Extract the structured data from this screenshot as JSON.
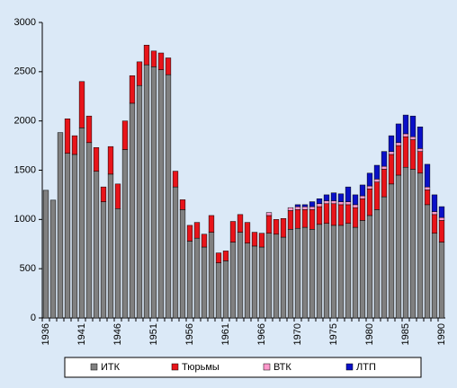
{
  "chart_data": {
    "type": "stacked_bar",
    "categories": [
      "1936",
      null,
      null,
      null,
      null,
      "1941",
      null,
      null,
      null,
      null,
      "1946",
      null,
      null,
      null,
      null,
      "1951",
      null,
      null,
      null,
      null,
      "1956",
      null,
      null,
      null,
      null,
      "1961",
      null,
      null,
      null,
      null,
      "1966",
      null,
      null,
      null,
      null,
      "1970",
      null,
      null,
      null,
      null,
      "1975",
      null,
      null,
      null,
      null,
      "1980",
      null,
      null,
      null,
      null,
      "1985",
      null,
      null,
      null,
      null,
      "1990"
    ],
    "series": [
      {
        "name": "ИТК",
        "color": "#808080",
        "values": [
          1296,
          1196,
          1882,
          1672,
          1660,
          1930,
          1780,
          1490,
          1180,
          1460,
          1110,
          1710,
          2180,
          2360,
          2570,
          2550,
          2520,
          2470,
          1330,
          1100,
          780,
          810,
          720,
          870,
          560,
          580,
          770,
          870,
          760,
          730,
          720,
          860,
          850,
          820,
          900,
          910,
          920,
          900,
          950,
          960,
          940,
          940,
          960,
          920,
          990,
          1040,
          1100,
          1230,
          1360,
          1450,
          1530,
          1510,
          1470,
          1150,
          860,
          770
        ]
      },
      {
        "name": "Тюрьмы",
        "color": "#e8141a",
        "values": [
          0,
          0,
          0,
          350,
          190,
          470,
          270,
          240,
          150,
          280,
          250,
          290,
          280,
          240,
          200,
          160,
          170,
          170,
          160,
          100,
          160,
          160,
          130,
          170,
          100,
          100,
          210,
          180,
          210,
          140,
          140,
          180,
          150,
          190,
          190,
          190,
          180,
          200,
          180,
          200,
          220,
          210,
          190,
          200,
          220,
          270,
          280,
          280,
          300,
          300,
          310,
          300,
          220,
          150,
          190,
          220
        ]
      },
      {
        "name": "ВТК",
        "color": "#ff99cc",
        "values": [
          0,
          0,
          0,
          0,
          0,
          0,
          0,
          0,
          0,
          0,
          0,
          0,
          0,
          0,
          0,
          0,
          0,
          0,
          0,
          0,
          0,
          0,
          0,
          0,
          0,
          0,
          0,
          0,
          0,
          0,
          0,
          30,
          0,
          0,
          30,
          30,
          30,
          30,
          30,
          30,
          30,
          30,
          30,
          30,
          30,
          30,
          30,
          30,
          30,
          30,
          30,
          30,
          30,
          30,
          30,
          30
        ]
      },
      {
        "name": "ЛТП",
        "color": "#0a10c8",
        "values": [
          0,
          0,
          0,
          0,
          0,
          0,
          0,
          0,
          0,
          0,
          0,
          0,
          0,
          0,
          0,
          0,
          0,
          0,
          0,
          0,
          0,
          0,
          0,
          0,
          0,
          0,
          0,
          0,
          0,
          0,
          0,
          0,
          0,
          0,
          0,
          20,
          20,
          50,
          50,
          60,
          80,
          80,
          150,
          100,
          110,
          130,
          140,
          150,
          160,
          190,
          190,
          210,
          220,
          230,
          170,
          110
        ]
      }
    ],
    "ylim": [
      0,
      3000
    ],
    "yticks": [
      0,
      500,
      1000,
      1500,
      2000,
      2500,
      3000
    ],
    "grid": false
  }
}
